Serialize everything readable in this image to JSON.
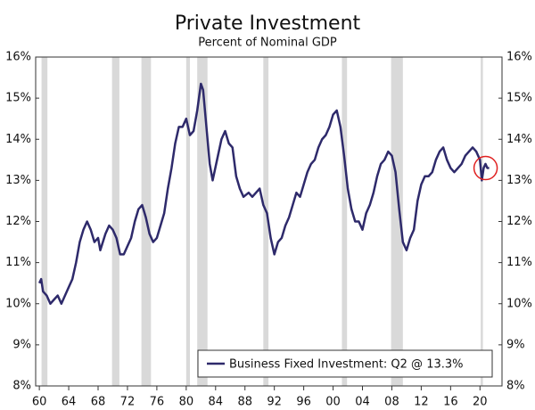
{
  "chart_data": {
    "type": "line",
    "title": "Private Investment",
    "subtitle": "Percent of Nominal GDP",
    "xlim": [
      1959.5,
      2023
    ],
    "ylim": [
      8,
      16
    ],
    "yticks": [
      {
        "value": 8,
        "label": "8%"
      },
      {
        "value": 9,
        "label": "9%"
      },
      {
        "value": 10,
        "label": "10%"
      },
      {
        "value": 11,
        "label": "11%"
      },
      {
        "value": 12,
        "label": "12%"
      },
      {
        "value": 13,
        "label": "13%"
      },
      {
        "value": 14,
        "label": "14%"
      },
      {
        "value": 15,
        "label": "15%"
      },
      {
        "value": 16,
        "label": "16%"
      }
    ],
    "xticks": [
      {
        "value": 1960,
        "label": "60"
      },
      {
        "value": 1964,
        "label": "64"
      },
      {
        "value": 1968,
        "label": "68"
      },
      {
        "value": 1972,
        "label": "72"
      },
      {
        "value": 1976,
        "label": "76"
      },
      {
        "value": 1980,
        "label": "80"
      },
      {
        "value": 1984,
        "label": "84"
      },
      {
        "value": 1988,
        "label": "88"
      },
      {
        "value": 1992,
        "label": "92"
      },
      {
        "value": 1996,
        "label": "96"
      },
      {
        "value": 2000,
        "label": "00"
      },
      {
        "value": 2004,
        "label": "04"
      },
      {
        "value": 2008,
        "label": "08"
      },
      {
        "value": 2012,
        "label": "12"
      },
      {
        "value": 2016,
        "label": "16"
      },
      {
        "value": 2020,
        "label": "20"
      }
    ],
    "recession_color": "#d9d9d9",
    "recessions": [
      [
        1960.3,
        1961.1
      ],
      [
        1969.9,
        1970.9
      ],
      [
        1973.9,
        1975.2
      ],
      [
        1980.0,
        1980.5
      ],
      [
        1981.5,
        1982.9
      ],
      [
        1990.5,
        1991.2
      ],
      [
        2001.2,
        2001.9
      ],
      [
        2007.9,
        2009.5
      ],
      [
        2020.1,
        2020.4
      ]
    ],
    "legend": "lower right",
    "series": [
      {
        "name": "Business Fixed Investment: Q2 @ 13.3%",
        "color": "#2e2a6b",
        "x": [
          1960.0,
          1960.25,
          1960.5,
          1961.0,
          1961.5,
          1962.0,
          1962.5,
          1963.0,
          1963.5,
          1964.0,
          1964.5,
          1965.0,
          1965.5,
          1966.0,
          1966.5,
          1967.0,
          1967.5,
          1968.0,
          1968.3,
          1969.0,
          1969.5,
          1970.0,
          1970.5,
          1971.0,
          1971.5,
          1972.0,
          1972.5,
          1973.0,
          1973.5,
          1974.0,
          1974.5,
          1975.0,
          1975.5,
          1976.0,
          1976.5,
          1977.0,
          1977.5,
          1978.0,
          1978.5,
          1979.0,
          1979.5,
          1980.0,
          1980.5,
          1981.0,
          1981.5,
          1982.0,
          1982.3,
          1982.7,
          1983.2,
          1983.6,
          1984.2,
          1984.8,
          1985.3,
          1985.8,
          1986.3,
          1986.8,
          1987.3,
          1987.8,
          1988.5,
          1989.0,
          1989.5,
          1990.0,
          1990.5,
          1991.0,
          1991.5,
          1992.0,
          1992.5,
          1993.0,
          1993.5,
          1994.0,
          1994.5,
          1995.0,
          1995.5,
          1996.0,
          1996.5,
          1997.0,
          1997.5,
          1998.0,
          1998.5,
          1999.0,
          1999.5,
          2000.0,
          2000.5,
          2001.0,
          2001.5,
          2002.0,
          2002.5,
          2003.0,
          2003.5,
          2004.0,
          2004.5,
          2005.0,
          2005.5,
          2006.0,
          2006.5,
          2007.0,
          2007.5,
          2008.0,
          2008.5,
          2009.0,
          2009.5,
          2010.0,
          2010.5,
          2011.0,
          2011.5,
          2012.0,
          2012.5,
          2013.0,
          2013.5,
          2014.0,
          2014.5,
          2015.0,
          2015.5,
          2016.0,
          2016.5,
          2017.0,
          2017.5,
          2018.0,
          2018.5,
          2019.0,
          2019.5,
          2020.0,
          2020.25,
          2020.5,
          2020.75,
          2021.0,
          2021.25
        ],
        "values": [
          10.5,
          10.6,
          10.3,
          10.2,
          10.0,
          10.1,
          10.2,
          10.0,
          10.2,
          10.4,
          10.6,
          11.0,
          11.5,
          11.8,
          12.0,
          11.8,
          11.5,
          11.6,
          11.3,
          11.7,
          11.9,
          11.8,
          11.6,
          11.2,
          11.2,
          11.4,
          11.6,
          12.0,
          12.3,
          12.4,
          12.1,
          11.7,
          11.5,
          11.6,
          11.9,
          12.2,
          12.8,
          13.3,
          13.9,
          14.3,
          14.3,
          14.5,
          14.1,
          14.2,
          14.7,
          15.35,
          15.2,
          14.4,
          13.4,
          13.0,
          13.5,
          14.0,
          14.2,
          13.9,
          13.8,
          13.1,
          12.8,
          12.6,
          12.7,
          12.6,
          12.7,
          12.8,
          12.4,
          12.2,
          11.6,
          11.2,
          11.5,
          11.6,
          11.9,
          12.1,
          12.4,
          12.7,
          12.6,
          12.9,
          13.2,
          13.4,
          13.5,
          13.8,
          14.0,
          14.1,
          14.3,
          14.6,
          14.7,
          14.3,
          13.6,
          12.8,
          12.3,
          12.0,
          12.0,
          11.8,
          12.2,
          12.4,
          12.7,
          13.1,
          13.4,
          13.5,
          13.7,
          13.6,
          13.2,
          12.3,
          11.5,
          11.3,
          11.6,
          11.8,
          12.5,
          12.9,
          13.1,
          13.1,
          13.2,
          13.5,
          13.7,
          13.8,
          13.5,
          13.3,
          13.2,
          13.3,
          13.4,
          13.6,
          13.7,
          13.8,
          13.7,
          13.5,
          13.0,
          13.3,
          13.4,
          13.3,
          13.3
        ]
      }
    ]
  }
}
